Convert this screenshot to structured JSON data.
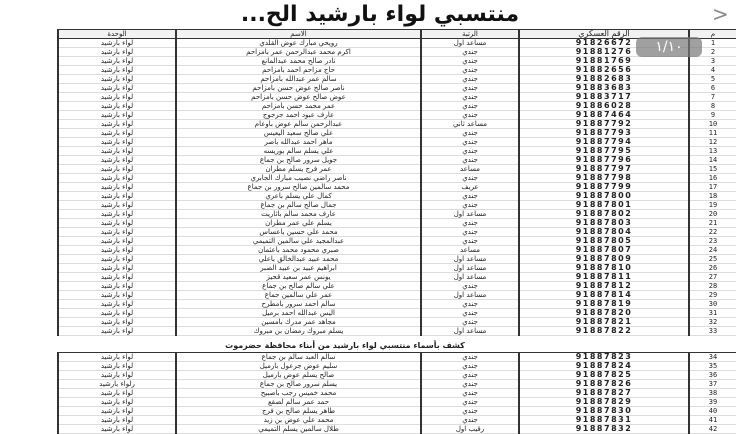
{
  "header": {
    "title": "منتسبي لواء بارشيد الح...",
    "back_icon": "chevron-right"
  },
  "page_indicator": "١/١٠",
  "columns": {
    "num": "م",
    "id": "الرقم العسكري",
    "rank": "الرتبة",
    "name": "الاسم",
    "unit": "الوحدة"
  },
  "section2_title": "كشف بأسماء منتسبي لواء بارشيد من أبناء محافظة حضرموت",
  "table1": [
    [
      "1",
      "91826672",
      "مساعد اول",
      "رويحي مبارك عوض القلدي",
      "لواء بارشيد"
    ],
    [
      "2",
      "91881276",
      "جندي",
      "اكرم محمد عبدالرحمن عمر بامزاحم",
      "لواء بارشيد"
    ],
    [
      "3",
      "91881769",
      "جندي",
      "نادر صالح محمد عبدالمانع",
      "لواء بارشيد"
    ],
    [
      "4",
      "91882656",
      "جندي",
      "حاج مزاحم احمد بامزاحم",
      "لواء بارشيد"
    ],
    [
      "5",
      "91882683",
      "جندي",
      "سالم عمر عبدالله بامزاحم",
      "لواء بارشيد"
    ],
    [
      "6",
      "91883683",
      "جندي",
      "ناصر صالح عوض حسن بامزاحم",
      "لواء بارشيد"
    ],
    [
      "7",
      "91883717",
      "جندي",
      "عوض صالح عوض حسن بامزاحم",
      "لواء بارشيد"
    ],
    [
      "8",
      "91886028",
      "جندي",
      "عمر محمد حسن بامزاحم",
      "لواء بارشيد"
    ],
    [
      "9",
      "91887464",
      "جندي",
      "عارف عبود احمد جرجوج",
      "لواء بارشيد"
    ],
    [
      "10",
      "91887792",
      "مساعد ثاني",
      "عبدالرحمن سالم عوض باوعام",
      "لواء بارشيد"
    ],
    [
      "11",
      "91887793",
      "جندي",
      "علي صالح سعيد اليعيس",
      "لواء بارشيد"
    ],
    [
      "12",
      "91887794",
      "جندي",
      "ماهر احمد عبدالله باصر",
      "لواء بارشيد"
    ],
    [
      "13",
      "91887795",
      "جندي",
      "علي يسلم سالم بوريسه",
      "لواء بارشيد"
    ],
    [
      "14",
      "91887796",
      "جندي",
      "جويل سرور صالح بن جماع",
      "لواء بارشيد"
    ],
    [
      "15",
      "91887797",
      "مساعد",
      "عمر فرج يسلم مطران",
      "لواء بارشيد"
    ],
    [
      "16",
      "91887798",
      "جندي",
      "ناصر راضي نصيب مبارك الجابري",
      "لواء بارشيد"
    ],
    [
      "17",
      "91887799",
      "عريف",
      "محمد سالمين صالح سرور بن جماع",
      "لواء بارشيد"
    ],
    [
      "18",
      "91887800",
      "جندي",
      "كمال علي يسلم باعري",
      "لواء بارشيد"
    ],
    [
      "19",
      "91887801",
      "جندي",
      "جمال صالح سالم بن جماع",
      "لواء بارشيد"
    ],
    [
      "20",
      "91887802",
      "مساعد اول",
      "عارف محمد سالم باثاريت",
      "لواء بارشيد"
    ],
    [
      "21",
      "91887803",
      "جندي",
      "يسلم علي عمر مطران",
      "لواء بارشيد"
    ],
    [
      "22",
      "91887804",
      "جندي",
      "محمد علي حسين باعساس",
      "لواء بارشيد"
    ],
    [
      "23",
      "91887805",
      "جندي",
      "عبدالمجيد علي سالمين التميمي",
      "لواء بارشيد"
    ],
    [
      "24",
      "91887807",
      "مساعد",
      "صبري محمود محمد باعثمان",
      "لواء بارشيد"
    ],
    [
      "25",
      "91887809",
      "مساعد اول",
      "محمد عبيد عبدالخالق باعلي",
      "لواء بارشيد"
    ],
    [
      "26",
      "91887810",
      "مساعد اول",
      "ابراهيم عبيد بن عبيد الصبر",
      "لواء بارشيد"
    ],
    [
      "27",
      "91887811",
      "مساعد اول",
      "يونس عمر سعيد قحيز",
      "لواء بارشيد"
    ],
    [
      "28",
      "91887812",
      "جندي",
      "علي سالم صالح بن جماع",
      "لواء بارشيد"
    ],
    [
      "29",
      "91887814",
      "مساعد اول",
      "عمر علي سالمين جماع",
      "لواء بارشيد"
    ],
    [
      "30",
      "91887819",
      "جندي",
      "سالم احمد سرور بامطرح",
      "لواء بارشيد"
    ],
    [
      "31",
      "91887820",
      "جندي",
      "اليس عبدالله احمد برميل",
      "لواء بارشيد"
    ],
    [
      "32",
      "91887821",
      "جندي",
      "مجاهد عمر مدرك بامسين",
      "لواء بارشيد"
    ],
    [
      "33",
      "91887822",
      "مساعد اول",
      "يسلم مبروك رمضان بن مبروك",
      "لواء بارشيد"
    ]
  ],
  "table2": [
    [
      "34",
      "91887823",
      "جندي",
      "سالم العبد سالم بن جماع",
      "لواء بارشيد"
    ],
    [
      "35",
      "91887824",
      "جندي",
      "سليم عوض جرعول بارميل",
      "لواء بارشيد"
    ],
    [
      "36",
      "91887825",
      "جندي",
      "صالح يسلم عوض بارميل",
      "لواء بارشيد"
    ],
    [
      "37",
      "91887826",
      "جندي",
      "يسلم سرور صالح بن جماع",
      "رلواء بارشيد"
    ],
    [
      "38",
      "91887827",
      "جندي",
      "محمد خميس رجب باصبيح",
      "لواء بارشيد"
    ],
    [
      "39",
      "91887829",
      "جندي",
      "حمد عمر سالم لصقع",
      "لواء بارشيد"
    ],
    [
      "40",
      "91887830",
      "جندي",
      "طاهر يسلم صالح بن فرج",
      "لواء بارشيد"
    ],
    [
      "41",
      "91887831",
      "جندي",
      "محمد علي عوض بن زيد",
      "لواء بارشيد"
    ],
    [
      "42",
      "91887832",
      "رقيب اول",
      "طلال سالمين يسلم التميمي",
      "لواء بارشيد"
    ]
  ]
}
